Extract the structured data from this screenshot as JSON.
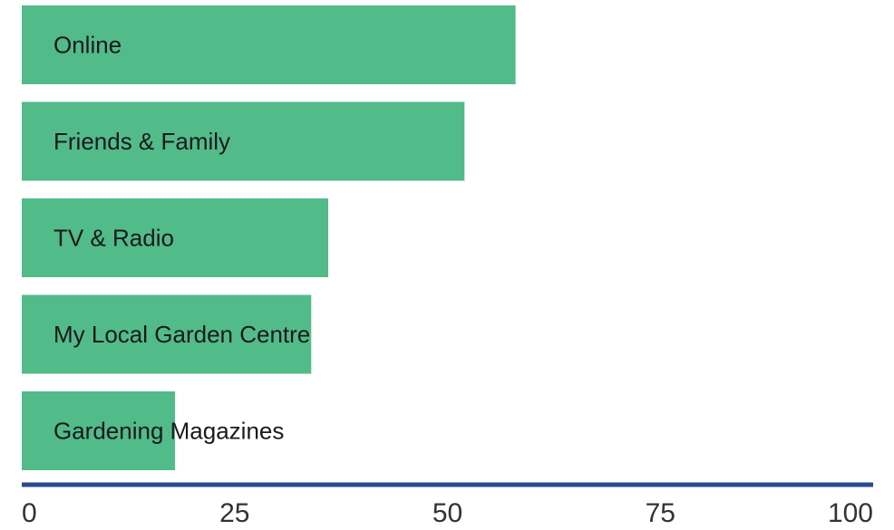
{
  "chart_data": {
    "type": "bar",
    "orientation": "horizontal",
    "categories": [
      "Online",
      "Friends & Family",
      "TV & Radio",
      "My Local Garden Centre",
      "Gardening Magazines"
    ],
    "values": [
      58,
      52,
      36,
      34,
      18
    ],
    "color": "#52bb8a",
    "xlim": [
      0,
      100
    ],
    "xticks": [
      0,
      25,
      50,
      75,
      100
    ],
    "axis_color": "#2a4a8f"
  }
}
